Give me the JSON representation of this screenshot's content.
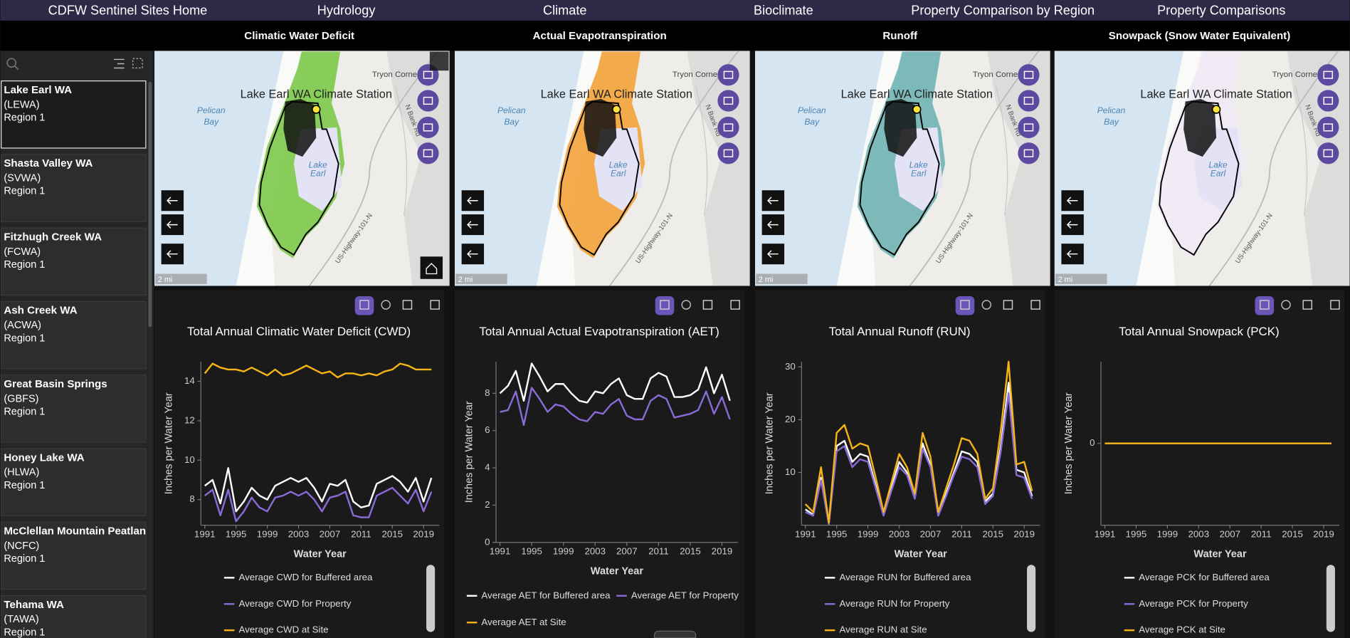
{
  "nav": [
    "CDFW Sentinel Sites Home",
    "Hydrology",
    "Climate",
    "Bioclimate",
    "Property Comparison by Region",
    "Property Comparisons"
  ],
  "nav_active": 1,
  "sites": [
    {
      "name": "Lake Earl WA",
      "code": "(LEWA)",
      "region": "Region 1"
    },
    {
      "name": "Shasta Valley WA",
      "code": "(SVWA)",
      "region": "Region 1"
    },
    {
      "name": "Fitzhugh Creek WA",
      "code": "(FCWA)",
      "region": "Region 1"
    },
    {
      "name": "Ash Creek WA",
      "code": "(ACWA)",
      "region": "Region 1"
    },
    {
      "name": "Great Basin Springs",
      "code": "(GBFS)",
      "region": "Region 1"
    },
    {
      "name": "Honey Lake WA",
      "code": "(HLWA)",
      "region": "Region 1"
    },
    {
      "name": "McClellan Mountain Peatlan",
      "code": "(NCFC)",
      "region": "Region 1"
    },
    {
      "name": "Tehama WA",
      "code": "(TAWA)",
      "region": "Region 1"
    }
  ],
  "map_labels": {
    "station": "Lake Earl WA Climate Station",
    "bay": [
      "Pelican",
      "Bay"
    ],
    "lake": [
      "Lake",
      "Earl"
    ],
    "place": "Tryon Corne",
    "road": "US-Highway-101-N",
    "street": "N Bank Rd",
    "scale": "2 mi"
  },
  "panels": [
    {
      "title": "Climatic Water Deficit",
      "map_fill": "#7cc94a",
      "chart": {
        "type": "line",
        "title": "Total Annual Climatic Water Deficit (CWD)",
        "xlabel": "Water Year",
        "ylabel": "Inches per Water Year",
        "x": [
          1991,
          1992,
          1993,
          1994,
          1995,
          1996,
          1997,
          1998,
          1999,
          2000,
          2001,
          2002,
          2003,
          2004,
          2005,
          2006,
          2007,
          2008,
          2009,
          2010,
          2011,
          2012,
          2013,
          2014,
          2015,
          2016,
          2017,
          2018,
          2019,
          2020
        ],
        "xlim": [
          1990.5,
          2021
        ],
        "xticks": [
          1991,
          1995,
          1999,
          2003,
          2007,
          2011,
          2015,
          2019
        ],
        "ylim": [
          6.7,
          15
        ],
        "yticks": [
          8,
          10,
          12,
          14
        ],
        "series": [
          {
            "name": "Average CWD for Buffered area",
            "color": "#ffffff",
            "values": [
              8.7,
              9.0,
              7.8,
              9.6,
              7.4,
              7.9,
              8.6,
              8.2,
              8.0,
              8.7,
              8.9,
              9.1,
              8.9,
              9.1,
              8.6,
              7.9,
              8.8,
              8.7,
              9.0,
              7.9,
              7.6,
              7.7,
              8.8,
              9.0,
              9.2,
              8.9,
              8.4,
              9.1,
              7.9,
              9.1
            ]
          },
          {
            "name": "Average CWD for Property",
            "color": "#8a6ad6",
            "values": [
              8.2,
              8.5,
              7.2,
              8.5,
              6.9,
              7.4,
              8.1,
              7.6,
              7.4,
              8.1,
              8.2,
              8.4,
              8.2,
              8.4,
              8.0,
              7.4,
              8.1,
              8.2,
              8.4,
              7.2,
              7.1,
              7.1,
              8.2,
              8.4,
              8.6,
              8.2,
              7.8,
              8.5,
              7.4,
              8.4
            ]
          },
          {
            "name": "Average CWD at Site",
            "color": "#f5b316",
            "values": [
              14.4,
              14.9,
              14.7,
              14.6,
              14.6,
              14.5,
              14.7,
              14.5,
              14.3,
              14.6,
              14.3,
              14.4,
              14.6,
              14.8,
              14.6,
              14.4,
              14.5,
              14.2,
              14.4,
              14.4,
              14.3,
              14.4,
              14.3,
              14.5,
              14.6,
              14.9,
              14.8,
              14.6,
              14.6,
              14.6
            ]
          }
        ]
      }
    },
    {
      "title": "Actual Evapotranspiration",
      "map_fill": "#f2a23a",
      "chart": {
        "type": "line",
        "title": "Total Annual Actual Evapotranspiration (AET)",
        "xlabel": "Water Year",
        "ylabel": "Inches per Water Year",
        "x": [
          1991,
          1992,
          1993,
          1994,
          1995,
          1996,
          1997,
          1998,
          1999,
          2000,
          2001,
          2002,
          2003,
          2004,
          2005,
          2006,
          2007,
          2008,
          2009,
          2010,
          2011,
          2012,
          2013,
          2014,
          2015,
          2016,
          2017,
          2018,
          2019,
          2020
        ],
        "xlim": [
          1990.5,
          2021
        ],
        "xticks": [
          1991,
          1995,
          1999,
          2003,
          2007,
          2011,
          2015,
          2019
        ],
        "ylim": [
          0,
          9.7
        ],
        "yticks": [
          0,
          2,
          4,
          6,
          8
        ],
        "series": [
          {
            "name": "Average AET for Buffered area",
            "color": "#ffffff",
            "values": [
              8.0,
              8.4,
              9.2,
              7.6,
              9.6,
              8.9,
              8.1,
              8.5,
              8.5,
              8.0,
              7.6,
              7.5,
              8.1,
              8.0,
              8.5,
              8.8,
              7.9,
              7.7,
              7.7,
              8.8,
              9.1,
              8.9,
              7.8,
              7.8,
              7.9,
              8.2,
              9.4,
              8.0,
              9.0,
              7.6
            ]
          },
          {
            "name": "Average AET for Property",
            "color": "#8a6ad6",
            "values": [
              7.0,
              7.1,
              8.1,
              6.3,
              8.3,
              7.7,
              7.0,
              7.4,
              7.3,
              6.9,
              6.6,
              6.5,
              7.0,
              6.9,
              7.4,
              7.7,
              6.8,
              6.6,
              6.6,
              7.6,
              7.9,
              7.7,
              6.7,
              6.8,
              6.9,
              7.1,
              8.1,
              6.9,
              7.8,
              6.6
            ]
          },
          {
            "name": "Average AET at Site",
            "color": "#f5b316",
            "values": [
              null,
              null,
              null,
              null,
              null,
              null,
              null,
              null,
              null,
              null,
              null,
              null,
              null,
              null,
              null,
              null,
              null,
              null,
              null,
              null,
              null,
              null,
              null,
              null,
              null,
              null,
              null,
              null,
              null,
              null
            ]
          }
        ]
      }
    },
    {
      "title": "Runoff",
      "map_fill": "#6fb3b3",
      "chart": {
        "type": "line",
        "title": "Total Annual Runoff (RUN)",
        "xlabel": "Water Year",
        "ylabel": "Inches per Water Year",
        "x": [
          1991,
          1992,
          1993,
          1994,
          1995,
          1996,
          1997,
          1998,
          1999,
          2000,
          2001,
          2002,
          2003,
          2004,
          2005,
          2006,
          2007,
          2008,
          2009,
          2010,
          2011,
          2012,
          2013,
          2014,
          2015,
          2016,
          2017,
          2018,
          2019,
          2020
        ],
        "xlim": [
          1990.5,
          2021
        ],
        "xticks": [
          1991,
          1995,
          1999,
          2003,
          2007,
          2011,
          2015,
          2019
        ],
        "ylim": [
          0,
          31
        ],
        "yticks": [
          10,
          20,
          30
        ],
        "series": [
          {
            "name": "Average RUN for Buffered area",
            "color": "#ffffff",
            "values": [
              3,
              2,
              9,
              0.3,
              15,
              16,
              12,
              13.5,
              13,
              7.5,
              2,
              7,
              12,
              10,
              5.5,
              15.5,
              11.5,
              2,
              6,
              10,
              14,
              13.5,
              12,
              4.5,
              6,
              15,
              27,
              10.5,
              10,
              5.5
            ]
          },
          {
            "name": "Average RUN for Property",
            "color": "#8a6ad6",
            "values": [
              2.5,
              1.8,
              8.5,
              0.2,
              14,
              15,
              11,
              12.5,
              12,
              7,
              1.8,
              6.5,
              11,
              9.5,
              5,
              14.5,
              11,
              1.8,
              5.5,
              9.5,
              13,
              12.5,
              11,
              4,
              5.5,
              14,
              25,
              9.5,
              9,
              5
            ]
          },
          {
            "name": "Average RUN at Site",
            "color": "#f5b316",
            "values": [
              4,
              2.5,
              11,
              0.5,
              17.5,
              19,
              14.5,
              15.5,
              15,
              9,
              2.5,
              8,
              13.5,
              11,
              6,
              17.5,
              13,
              2.5,
              7,
              11.5,
              16.5,
              16,
              13.5,
              5,
              7,
              18,
              31,
              11.5,
              12,
              6.5
            ]
          }
        ]
      }
    },
    {
      "title": "Snowpack (Snow Water Equivalent)",
      "map_fill": "#efe9f5",
      "chart": {
        "type": "line",
        "title": "Total Annual Snowpack (PCK)",
        "xlabel": "Water Year",
        "ylabel": "Inches per Water Year",
        "x": [
          1991,
          1992,
          1993,
          1994,
          1995,
          1996,
          1997,
          1998,
          1999,
          2000,
          2001,
          2002,
          2003,
          2004,
          2005,
          2006,
          2007,
          2008,
          2009,
          2010,
          2011,
          2012,
          2013,
          2014,
          2015,
          2016,
          2017,
          2018,
          2019,
          2020
        ],
        "xlim": [
          1990.5,
          2021
        ],
        "xticks": [
          1991,
          1995,
          1999,
          2003,
          2007,
          2011,
          2015,
          2019
        ],
        "ylim": [
          -1,
          1
        ],
        "yticks": [
          0
        ],
        "series": [
          {
            "name": "Average PCK for Buffered area",
            "color": "#ffffff",
            "values": [
              0,
              0,
              0,
              0,
              0,
              0,
              0,
              0,
              0,
              0,
              0,
              0,
              0,
              0,
              0,
              0,
              0,
              0,
              0,
              0,
              0,
              0,
              0,
              0,
              0,
              0,
              0,
              0,
              0,
              0
            ]
          },
          {
            "name": "Average PCK for Property",
            "color": "#8a6ad6",
            "values": [
              0,
              0,
              0,
              0,
              0,
              0,
              0,
              0,
              0,
              0,
              0,
              0,
              0,
              0,
              0,
              0,
              0,
              0,
              0,
              0,
              0,
              0,
              0,
              0,
              0,
              0,
              0,
              0,
              0,
              0
            ]
          },
          {
            "name": "Average PCK at Site",
            "color": "#f5b316",
            "values": [
              0,
              0,
              0,
              0,
              0,
              0,
              0,
              0,
              0,
              0,
              0,
              0,
              0,
              0,
              0,
              0,
              0,
              0,
              0,
              0,
              0,
              0,
              0,
              0,
              0,
              0,
              0,
              0,
              0,
              0
            ]
          }
        ]
      }
    }
  ]
}
